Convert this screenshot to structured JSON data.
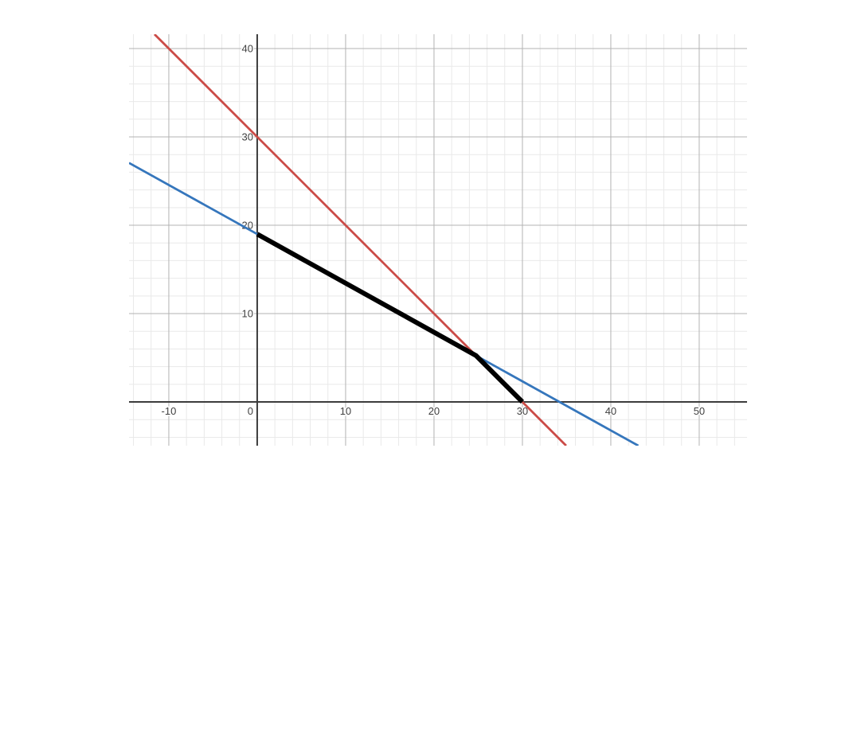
{
  "page": {
    "background_color": "#ffffff",
    "title": ""
  },
  "chart_data": {
    "type": "line",
    "title": "",
    "xlabel": "",
    "ylabel": "",
    "legend": "none",
    "grid": {
      "visible": true,
      "minor_step": 2,
      "major_step": 10,
      "minor_color": "#e9e9e9",
      "major_color": "#b3b3b3",
      "axis_color": "#3c3c3c",
      "label_color": "#3f3f3f"
    },
    "x_axis": {
      "min": -14.5,
      "max": 55.41,
      "tick_values": [
        -10,
        0,
        10,
        20,
        30,
        40,
        50
      ],
      "tick_labels": [
        "-10",
        "0",
        "10",
        "20",
        "30",
        "40",
        "50"
      ]
    },
    "y_axis": {
      "min": -4.95,
      "max": 41.62,
      "tick_values": [
        10,
        20,
        30,
        40
      ],
      "tick_labels": [
        "10",
        "20",
        "30",
        "40"
      ]
    },
    "series": [
      {
        "name": "red-line",
        "color": "#cb4b47",
        "width": 2.8,
        "extend": true,
        "points": [
          [
            0,
            30
          ],
          [
            30,
            0
          ]
        ],
        "description": "straight line through (0,30) and (30,0), slope -1"
      },
      {
        "name": "blue-line",
        "color": "#3576bc",
        "width": 2.8,
        "extend": true,
        "points": [
          [
            0,
            19
          ],
          [
            34.2,
            0
          ]
        ],
        "description": "straight line through (0,19) and (34.2,0), slope -0.556"
      },
      {
        "name": "black-boundary-segment",
        "color": "#000000",
        "width": 6,
        "extend": false,
        "points": [
          [
            0,
            19
          ],
          [
            24.75,
            5.25
          ],
          [
            30,
            0
          ]
        ],
        "description": "thick polyline from (0,19) along blue line to intersection (24.75,5.25), then along red line to (30,0)"
      }
    ]
  }
}
